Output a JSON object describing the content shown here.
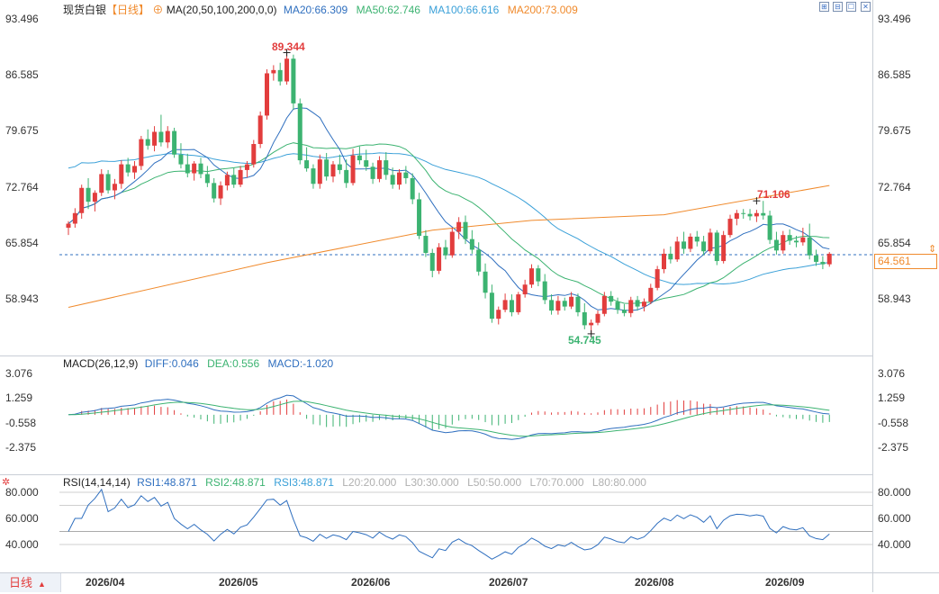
{
  "header": {
    "instrument": "现货白银",
    "period_tag": "【日线】",
    "indicator": "MA(20,50,100,200,0,0)",
    "ma20": "MA20:66.309",
    "ma50": "MA50:62.746",
    "ma100": "MA100:66.616",
    "ma200": "MA200:73.009"
  },
  "window_controls": [
    "⊞",
    "⊟",
    "☐",
    "✕"
  ],
  "price_axis": [
    "93.496",
    "86.585",
    "79.675",
    "72.764",
    "65.854",
    "58.943"
  ],
  "current_price": "64.561",
  "annotations": {
    "high": "89.344",
    "low": "54.745",
    "local_high": "71.106"
  },
  "macd": {
    "title": "MACD(26,12,9)",
    "diff": "DIFF:0.046",
    "dea": "DEA:0.556",
    "macd": "MACD:-1.020",
    "axis": [
      "3.076",
      "1.259",
      "-0.558",
      "-2.375"
    ]
  },
  "rsi": {
    "title": "RSI(14,14,14)",
    "rsi1": "RSI1:48.871",
    "rsi2": "RSI2:48.871",
    "rsi3": "RSI3:48.871",
    "levels": [
      "L20:20.000",
      "L30:30.000",
      "L50:50.000",
      "L70:70.000",
      "L80:80.000"
    ],
    "axis": [
      "80.000",
      "60.000",
      "40.000"
    ]
  },
  "dates": [
    "2026/04",
    "2026/05",
    "2026/06",
    "2026/07",
    "2026/08",
    "2026/09"
  ],
  "period_button": "日线",
  "colors": {
    "up": "#e23d3d",
    "down": "#3cb371",
    "ma20": "#2f6fbf",
    "ma50": "#3cb371",
    "ma100": "#3aa0d8",
    "ma200": "#f08a2c"
  },
  "chart_data": {
    "type": "candlestick",
    "price_axis_range": [
      52.0,
      94.0
    ],
    "candles": [
      [
        67.8,
        68.6,
        66.9,
        68.3
      ],
      [
        68.3,
        70.2,
        67.8,
        69.6
      ],
      [
        69.6,
        73.1,
        68.9,
        72.7
      ],
      [
        72.7,
        73.9,
        70.1,
        71.0
      ],
      [
        71.0,
        72.4,
        69.8,
        72.1
      ],
      [
        72.1,
        75.0,
        71.7,
        74.4
      ],
      [
        74.4,
        74.9,
        72.0,
        72.4
      ],
      [
        72.4,
        73.8,
        71.3,
        73.2
      ],
      [
        73.2,
        76.1,
        72.6,
        75.6
      ],
      [
        75.6,
        76.4,
        74.1,
        74.6
      ],
      [
        74.6,
        76.0,
        73.8,
        75.4
      ],
      [
        75.4,
        79.1,
        74.9,
        78.7
      ],
      [
        78.7,
        79.9,
        77.4,
        77.9
      ],
      [
        77.9,
        80.3,
        77.2,
        79.6
      ],
      [
        79.6,
        81.7,
        77.8,
        78.3
      ],
      [
        78.3,
        80.3,
        77.6,
        79.7
      ],
      [
        79.7,
        80.1,
        76.4,
        76.8
      ],
      [
        76.8,
        78.2,
        75.1,
        75.6
      ],
      [
        75.6,
        76.9,
        74.0,
        74.5
      ],
      [
        74.5,
        76.0,
        73.6,
        75.7
      ],
      [
        75.7,
        76.4,
        73.9,
        74.4
      ],
      [
        74.4,
        75.4,
        72.8,
        73.3
      ],
      [
        73.3,
        73.9,
        70.9,
        71.4
      ],
      [
        71.4,
        73.5,
        70.6,
        73.0
      ],
      [
        73.0,
        74.7,
        72.4,
        74.3
      ],
      [
        74.3,
        75.2,
        72.7,
        73.1
      ],
      [
        73.1,
        75.4,
        72.8,
        74.9
      ],
      [
        74.9,
        76.0,
        74.0,
        75.6
      ],
      [
        75.6,
        78.6,
        75.2,
        78.1
      ],
      [
        78.1,
        82.1,
        77.6,
        81.6
      ],
      [
        81.6,
        87.3,
        81.1,
        86.8
      ],
      [
        86.8,
        87.8,
        85.9,
        87.2
      ],
      [
        87.2,
        88.1,
        85.3,
        85.8
      ],
      [
        85.8,
        89.3,
        85.4,
        88.6
      ],
      [
        88.6,
        89.1,
        82.3,
        83.1
      ],
      [
        83.1,
        83.7,
        75.6,
        76.1
      ],
      [
        76.1,
        77.7,
        74.7,
        75.1
      ],
      [
        75.1,
        75.6,
        72.6,
        73.2
      ],
      [
        73.2,
        76.8,
        72.6,
        76.2
      ],
      [
        76.2,
        77.0,
        73.6,
        74.1
      ],
      [
        74.1,
        76.0,
        73.4,
        75.6
      ],
      [
        75.6,
        76.8,
        74.4,
        74.9
      ],
      [
        74.9,
        76.2,
        72.7,
        73.3
      ],
      [
        73.3,
        77.5,
        73.0,
        76.7
      ],
      [
        76.7,
        77.8,
        75.6,
        76.1
      ],
      [
        76.1,
        77.4,
        74.8,
        75.3
      ],
      [
        75.3,
        75.8,
        73.2,
        73.8
      ],
      [
        73.8,
        76.6,
        73.4,
        76.1
      ],
      [
        76.1,
        77.1,
        73.7,
        74.3
      ],
      [
        74.3,
        75.2,
        72.6,
        73.1
      ],
      [
        73.1,
        75.0,
        72.5,
        74.6
      ],
      [
        74.6,
        75.4,
        73.2,
        73.9
      ],
      [
        73.9,
        74.5,
        70.7,
        71.3
      ],
      [
        71.3,
        72.1,
        66.4,
        66.8
      ],
      [
        66.8,
        67.5,
        64.2,
        64.7
      ],
      [
        64.7,
        65.2,
        61.7,
        62.5
      ],
      [
        62.5,
        65.9,
        62.1,
        65.4
      ],
      [
        65.4,
        66.3,
        63.9,
        64.4
      ],
      [
        64.4,
        67.8,
        64.1,
        67.3
      ],
      [
        67.3,
        69.1,
        66.4,
        68.5
      ],
      [
        68.5,
        69.3,
        65.8,
        66.4
      ],
      [
        66.4,
        67.5,
        64.6,
        65.1
      ],
      [
        65.1,
        66.0,
        61.9,
        62.4
      ],
      [
        62.4,
        63.4,
        59.1,
        59.8
      ],
      [
        59.8,
        60.8,
        56.1,
        56.6
      ],
      [
        56.6,
        58.1,
        55.9,
        57.7
      ],
      [
        57.7,
        59.7,
        57.4,
        58.9
      ],
      [
        58.9,
        59.6,
        56.9,
        57.4
      ],
      [
        57.4,
        59.9,
        57.1,
        59.6
      ],
      [
        59.6,
        61.4,
        59.2,
        60.8
      ],
      [
        60.8,
        63.3,
        60.4,
        62.8
      ],
      [
        62.8,
        63.2,
        60.6,
        61.2
      ],
      [
        61.2,
        62.1,
        58.4,
        58.9
      ],
      [
        58.9,
        59.6,
        57.1,
        57.6
      ],
      [
        57.6,
        59.4,
        57.1,
        58.8
      ],
      [
        58.8,
        59.2,
        57.6,
        58.1
      ],
      [
        58.1,
        59.9,
        57.8,
        59.3
      ],
      [
        59.3,
        59.7,
        56.9,
        57.4
      ],
      [
        57.4,
        58.5,
        55.3,
        55.8
      ],
      [
        55.8,
        56.5,
        54.7,
        56.1
      ],
      [
        56.1,
        57.6,
        55.8,
        57.2
      ],
      [
        57.2,
        59.9,
        56.9,
        59.4
      ],
      [
        59.4,
        60.0,
        58.2,
        58.7
      ],
      [
        58.7,
        59.2,
        57.2,
        57.7
      ],
      [
        57.7,
        58.4,
        56.9,
        57.3
      ],
      [
        57.3,
        59.3,
        56.8,
        58.9
      ],
      [
        58.9,
        59.4,
        57.6,
        58.1
      ],
      [
        58.1,
        59.1,
        57.5,
        58.7
      ],
      [
        58.7,
        60.9,
        58.4,
        60.4
      ],
      [
        60.4,
        63.1,
        60.1,
        62.7
      ],
      [
        62.7,
        65.2,
        62.2,
        64.6
      ],
      [
        64.6,
        65.5,
        63.4,
        63.9
      ],
      [
        63.9,
        66.7,
        63.6,
        66.1
      ],
      [
        66.1,
        67.3,
        64.6,
        65.2
      ],
      [
        65.2,
        67.1,
        64.8,
        66.7
      ],
      [
        66.7,
        67.4,
        65.5,
        66.1
      ],
      [
        66.1,
        66.8,
        64.4,
        64.9
      ],
      [
        64.9,
        67.7,
        64.6,
        67.2
      ],
      [
        67.2,
        67.5,
        63.2,
        63.7
      ],
      [
        63.7,
        67.4,
        63.4,
        66.9
      ],
      [
        66.9,
        69.4,
        66.6,
        68.9
      ],
      [
        68.9,
        70.0,
        68.1,
        69.6
      ],
      [
        69.6,
        70.1,
        68.9,
        69.5
      ],
      [
        69.5,
        70.1,
        68.7,
        69.2
      ],
      [
        69.2,
        70.0,
        68.5,
        69.6
      ],
      [
        69.6,
        71.1,
        68.8,
        69.3
      ],
      [
        69.3,
        69.9,
        65.8,
        66.3
      ],
      [
        66.3,
        67.3,
        64.5,
        65.0
      ],
      [
        65.0,
        67.4,
        64.6,
        66.9
      ],
      [
        66.9,
        67.6,
        65.7,
        66.2
      ],
      [
        66.2,
        66.8,
        65.4,
        66.0
      ],
      [
        66.0,
        67.8,
        65.6,
        66.6
      ],
      [
        66.6,
        68.3,
        63.9,
        64.4
      ],
      [
        64.4,
        65.1,
        63.1,
        63.6
      ],
      [
        63.6,
        64.3,
        62.7,
        63.3
      ],
      [
        63.3,
        64.8,
        63.0,
        64.6
      ]
    ],
    "ma200": [
      [
        0,
        58.0
      ],
      [
        30,
        63.5
      ],
      [
        55,
        67.5
      ],
      [
        70,
        68.7
      ],
      [
        90,
        69.4
      ],
      [
        115,
        73.0
      ]
    ],
    "macd_axis_range": [
      -4.5,
      4.5
    ],
    "rsi_axis_range": [
      20,
      88
    ]
  }
}
